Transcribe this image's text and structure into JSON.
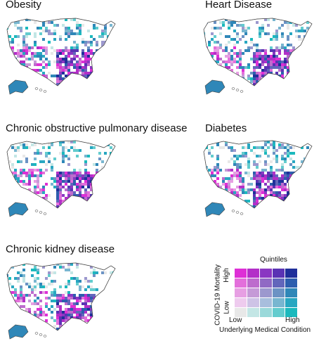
{
  "panels": [
    {
      "title": "Obesity"
    },
    {
      "title": "Heart Disease"
    },
    {
      "title": "Chronic obstructive pulmonary disease"
    },
    {
      "title": "Diabetes"
    },
    {
      "title": "Chronic kidney disease"
    }
  ],
  "legend": {
    "title": "Quintiles",
    "y_axis_label": "COVID-19 Mortality",
    "x_axis_label": "Underlying Medical Condition",
    "y_low": "Low",
    "y_high": "High",
    "x_low": "Low",
    "x_high": "High",
    "colors": [
      [
        "#de2fd6",
        "#b32fc8",
        "#8a37c2",
        "#5a33b4",
        "#1f2f9a"
      ],
      [
        "#e36fdb",
        "#bd6ccd",
        "#9069c4",
        "#6266bb",
        "#2d5eae"
      ],
      [
        "#e79fe3",
        "#c59ad7",
        "#9c98ce",
        "#6c93c4",
        "#2f87b8"
      ],
      [
        "#eecbee",
        "#cec3e6",
        "#a8bedd",
        "#78b6d0",
        "#28a7c1"
      ],
      [
        "#e8e8e8",
        "#c3e6e5",
        "#9ad9da",
        "#63ccce",
        "#1bb9bd"
      ]
    ]
  }
}
